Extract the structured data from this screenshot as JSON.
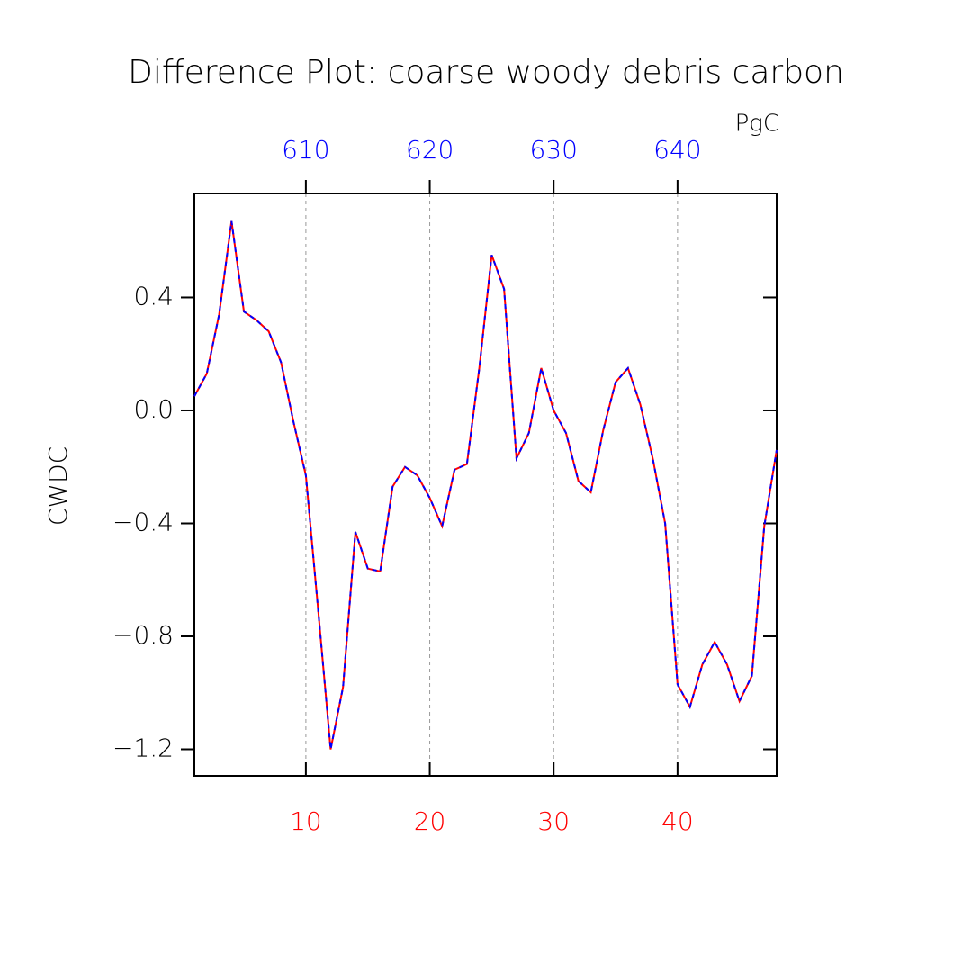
{
  "chart_data": {
    "type": "line",
    "title": "Difference Plot: coarse woody debris carbon",
    "y_label": "CWDC",
    "x2_label": "PgC",
    "x": [
      1,
      2,
      3,
      4,
      5,
      6,
      7,
      8,
      9,
      10,
      11,
      12,
      13,
      14,
      15,
      16,
      17,
      18,
      19,
      20,
      21,
      22,
      23,
      24,
      25,
      26,
      27,
      28,
      29,
      30,
      31,
      32,
      33,
      34,
      35,
      36,
      37,
      38,
      39,
      40,
      41,
      42,
      43,
      44,
      45,
      46,
      47,
      48
    ],
    "series": [
      {
        "color": "#ff0000",
        "dashed": false,
        "values": [
          0.05,
          0.13,
          0.34,
          0.67,
          0.35,
          0.32,
          0.28,
          0.17,
          -0.04,
          -0.23,
          -0.71,
          -1.2,
          -0.98,
          -0.43,
          -0.56,
          -0.57,
          -0.27,
          -0.2,
          -0.23,
          -0.31,
          -0.41,
          -0.21,
          -0.19,
          0.15,
          0.55,
          0.43,
          -0.17,
          -0.08,
          0.15,
          0.0,
          -0.08,
          -0.25,
          -0.29,
          -0.07,
          0.1,
          0.15,
          0.02,
          -0.17,
          -0.4,
          -0.97,
          -1.05,
          -0.9,
          -0.82,
          -0.9,
          -1.03,
          -0.94,
          -0.41,
          -0.14
        ]
      },
      {
        "color": "#0000ff",
        "dashed": true,
        "values": [
          0.05,
          0.13,
          0.34,
          0.67,
          0.35,
          0.32,
          0.28,
          0.17,
          -0.04,
          -0.23,
          -0.71,
          -1.2,
          -0.98,
          -0.43,
          -0.56,
          -0.57,
          -0.27,
          -0.2,
          -0.23,
          -0.31,
          -0.41,
          -0.21,
          -0.19,
          0.15,
          0.55,
          0.43,
          -0.17,
          -0.08,
          0.15,
          0.0,
          -0.08,
          -0.25,
          -0.29,
          -0.07,
          0.1,
          0.15,
          0.02,
          -0.17,
          -0.4,
          -0.97,
          -1.05,
          -0.9,
          -0.82,
          -0.9,
          -1.03,
          -0.94,
          -0.41,
          -0.14
        ]
      }
    ],
    "xlim": [
      1,
      48
    ],
    "xticks": [
      10,
      20,
      30,
      40
    ],
    "xtick_color": "#ff0000",
    "x2lim": [
      601,
      648
    ],
    "x2ticks": [
      610,
      620,
      630,
      640
    ],
    "x2tick_color": "#0000ff",
    "ylim": [
      -1.294,
      0.768
    ],
    "yticks": [
      {
        "value": -1.2,
        "label": "−1.2"
      },
      {
        "value": -0.8,
        "label": "−0.8"
      },
      {
        "value": -0.4,
        "label": "−0.4"
      },
      {
        "value": 0,
        "label": "0.0"
      },
      {
        "value": 0.4,
        "label": "0.4"
      }
    ],
    "grid": true
  }
}
